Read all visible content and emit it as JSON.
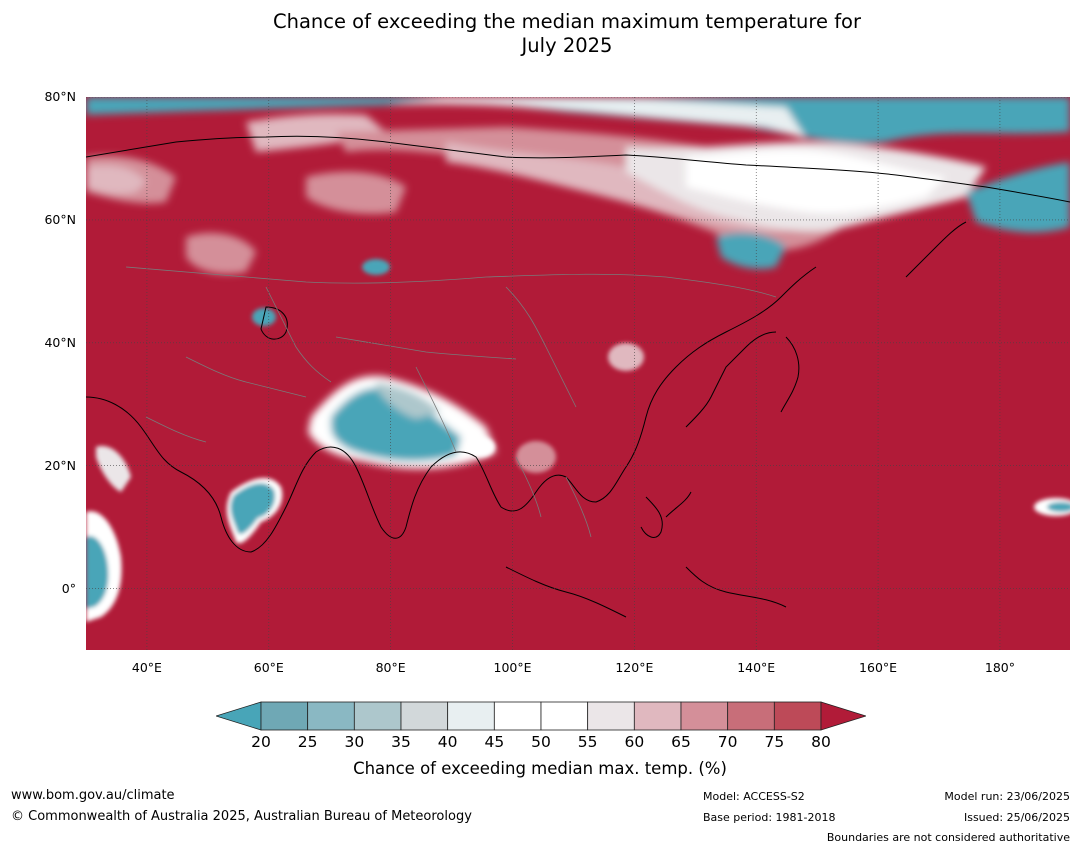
{
  "title": {
    "line1": "Chance of exceeding the median maximum temperature for",
    "line2": "July 2025"
  },
  "map": {
    "extent": {
      "lon_min": 30,
      "lon_max": 191.5,
      "lat_min": -10,
      "lat_max": 80
    },
    "lat_ticks": [
      {
        "value": 80,
        "label": "80°N"
      },
      {
        "value": 60,
        "label": "60°N"
      },
      {
        "value": 40,
        "label": "40°N"
      },
      {
        "value": 20,
        "label": "20°N"
      },
      {
        "value": 0,
        "label": "0°"
      }
    ],
    "lon_ticks": [
      {
        "value": 40,
        "label": "40°E"
      },
      {
        "value": 60,
        "label": "60°E"
      },
      {
        "value": 80,
        "label": "80°E"
      },
      {
        "value": 100,
        "label": "100°E"
      },
      {
        "value": 120,
        "label": "120°E"
      },
      {
        "value": 140,
        "label": "140°E"
      },
      {
        "value": 160,
        "label": "160°E"
      },
      {
        "value": 180,
        "label": "180°"
      }
    ],
    "background_color": "#b11b38"
  },
  "colorbar": {
    "levels": [
      20,
      25,
      30,
      35,
      40,
      45,
      50,
      55,
      60,
      65,
      70,
      75,
      80
    ],
    "tick_labels": [
      "20",
      "25",
      "30",
      "35",
      "40",
      "45",
      "50",
      "55",
      "60",
      "65",
      "70",
      "75",
      "80"
    ],
    "colors": [
      "#6fa8b5",
      "#8ab8c3",
      "#adc7cc",
      "#d2d8da",
      "#e8eff1",
      "#ffffff",
      "#ffffff",
      "#ebe6e8",
      "#e0b8bf",
      "#d48f99",
      "#c86e79",
      "#bd4a58"
    ],
    "under_color": "#48a5b8",
    "over_color": "#b11b38",
    "label": "Chance of exceeding median max. temp. (%)"
  },
  "footer": {
    "url": "www.bom.gov.au/climate",
    "copyright": "© Commonwealth of Australia 2025, Australian Bureau of Meteorology",
    "model": "Model: ACCESS-S2",
    "base_period": "Base period: 1981-2018",
    "model_run": "Model run: 23/06/2025",
    "issued": "Issued: 25/06/2025",
    "disclaimer": "Boundaries are not considered authoritative"
  }
}
